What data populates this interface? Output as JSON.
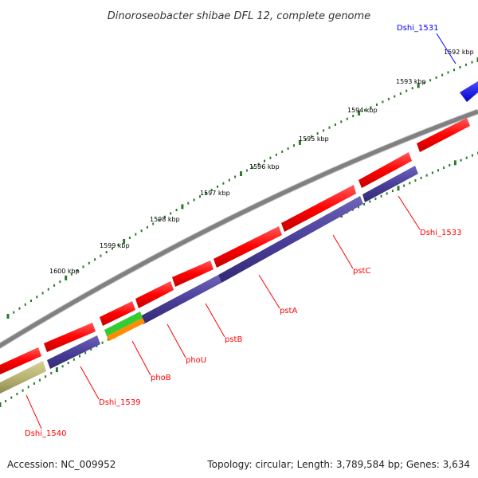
{
  "title": "Dinoroseobacter shibae DFL 12, complete genome",
  "footer": {
    "accession": "Accession: NC_009952",
    "summary": "Topology: circular; Length: 3,789,584 bp; Genes: 3,634"
  },
  "colors": {
    "backbone": "#808080",
    "ticks": "#2a7a2a",
    "cds": "#ff0000",
    "gene": "#4a3f9a",
    "highlight": "#0000ff",
    "pseudo": "#b9b474",
    "phoB_top": "#33cc33",
    "phoB_bottom": "#ff8c00",
    "label_red": "#ff0000",
    "label_blue": "#0000ff"
  },
  "axis": {
    "unit": "kbp",
    "labeled_ticks": [
      {
        "pos": 1592,
        "label": "1592 kbp"
      },
      {
        "pos": 1593,
        "label": "1593 kbp"
      },
      {
        "pos": 1594,
        "label": "1594 kbp"
      },
      {
        "pos": 1595,
        "label": "1595 kbp"
      },
      {
        "pos": 1596,
        "label": "1596 kbp"
      },
      {
        "pos": 1597,
        "label": "1597 kbp"
      },
      {
        "pos": 1598,
        "label": "1598 kbp"
      },
      {
        "pos": 1599,
        "label": "1599 kbp"
      },
      {
        "pos": 1600,
        "label": "1600 kbp"
      }
    ]
  },
  "genes": [
    {
      "name": "Dshi_1531",
      "color": "label_blue"
    },
    {
      "name": "Dshi_1533",
      "color": "label_red"
    },
    {
      "name": "pstC",
      "color": "label_red"
    },
    {
      "name": "pstA",
      "color": "label_red"
    },
    {
      "name": "pstB",
      "color": "label_red"
    },
    {
      "name": "phoU",
      "color": "label_red"
    },
    {
      "name": "phoB",
      "color": "label_red"
    },
    {
      "name": "Dshi_1539",
      "color": "label_red"
    },
    {
      "name": "Dshi_1540",
      "color": "label_red"
    }
  ]
}
